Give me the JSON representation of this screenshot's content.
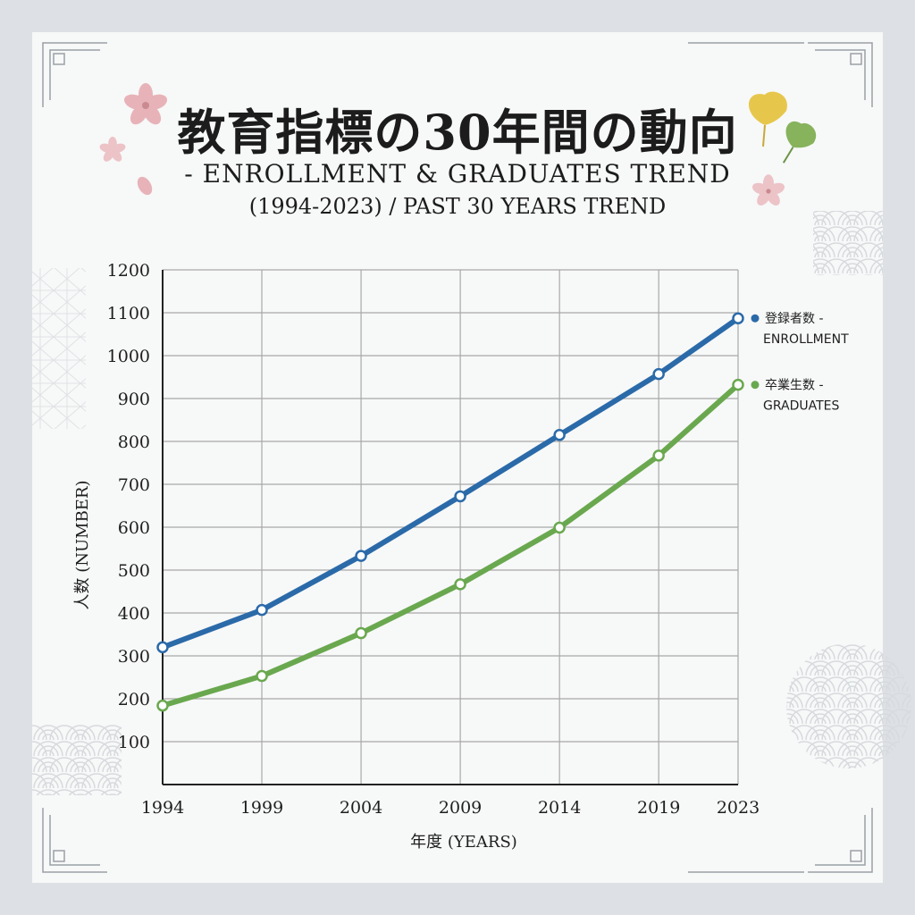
{
  "title": "教育指標の30年間の動向",
  "subtitle_line1": "- ENROLLMENT & GRADUATES TREND",
  "subtitle_line2": "(1994-2023) / PAST 30 YEARS TREND",
  "colors": {
    "enrollment": "#2b6aa9",
    "graduates": "#6aa84f",
    "grid": "#a8a8a8",
    "sakura": "#e7b3b8",
    "ginkgo_yellow": "#e6c74c",
    "ginkgo_green": "#86b35c"
  },
  "decor_icons": [
    "sakura-flower-icon",
    "ginkgo-leaf-icon",
    "seigaiha-wave-pattern",
    "asanoha-pattern"
  ],
  "chart_data": {
    "type": "line",
    "xlabel": "年度 (YEARS)",
    "ylabel": "人数 (NUMBER)",
    "x": [
      1994,
      1999,
      2004,
      2009,
      2014,
      2019,
      2023
    ],
    "ylim": [
      0,
      1200
    ],
    "yticks": [
      100,
      200,
      300,
      400,
      500,
      600,
      700,
      800,
      900,
      1000,
      1100,
      1200
    ],
    "grid": true,
    "legend_position": "right",
    "series": [
      {
        "name_line1": "登録者数 -",
        "name_line2": "ENROLLMENT",
        "values": [
          320,
          407,
          533,
          672,
          815,
          957,
          1087
        ]
      },
      {
        "name_line1": "卒業生数 -",
        "name_line2": "GRADUATES",
        "values": [
          184,
          253,
          353,
          467,
          599,
          767,
          932
        ]
      }
    ]
  }
}
